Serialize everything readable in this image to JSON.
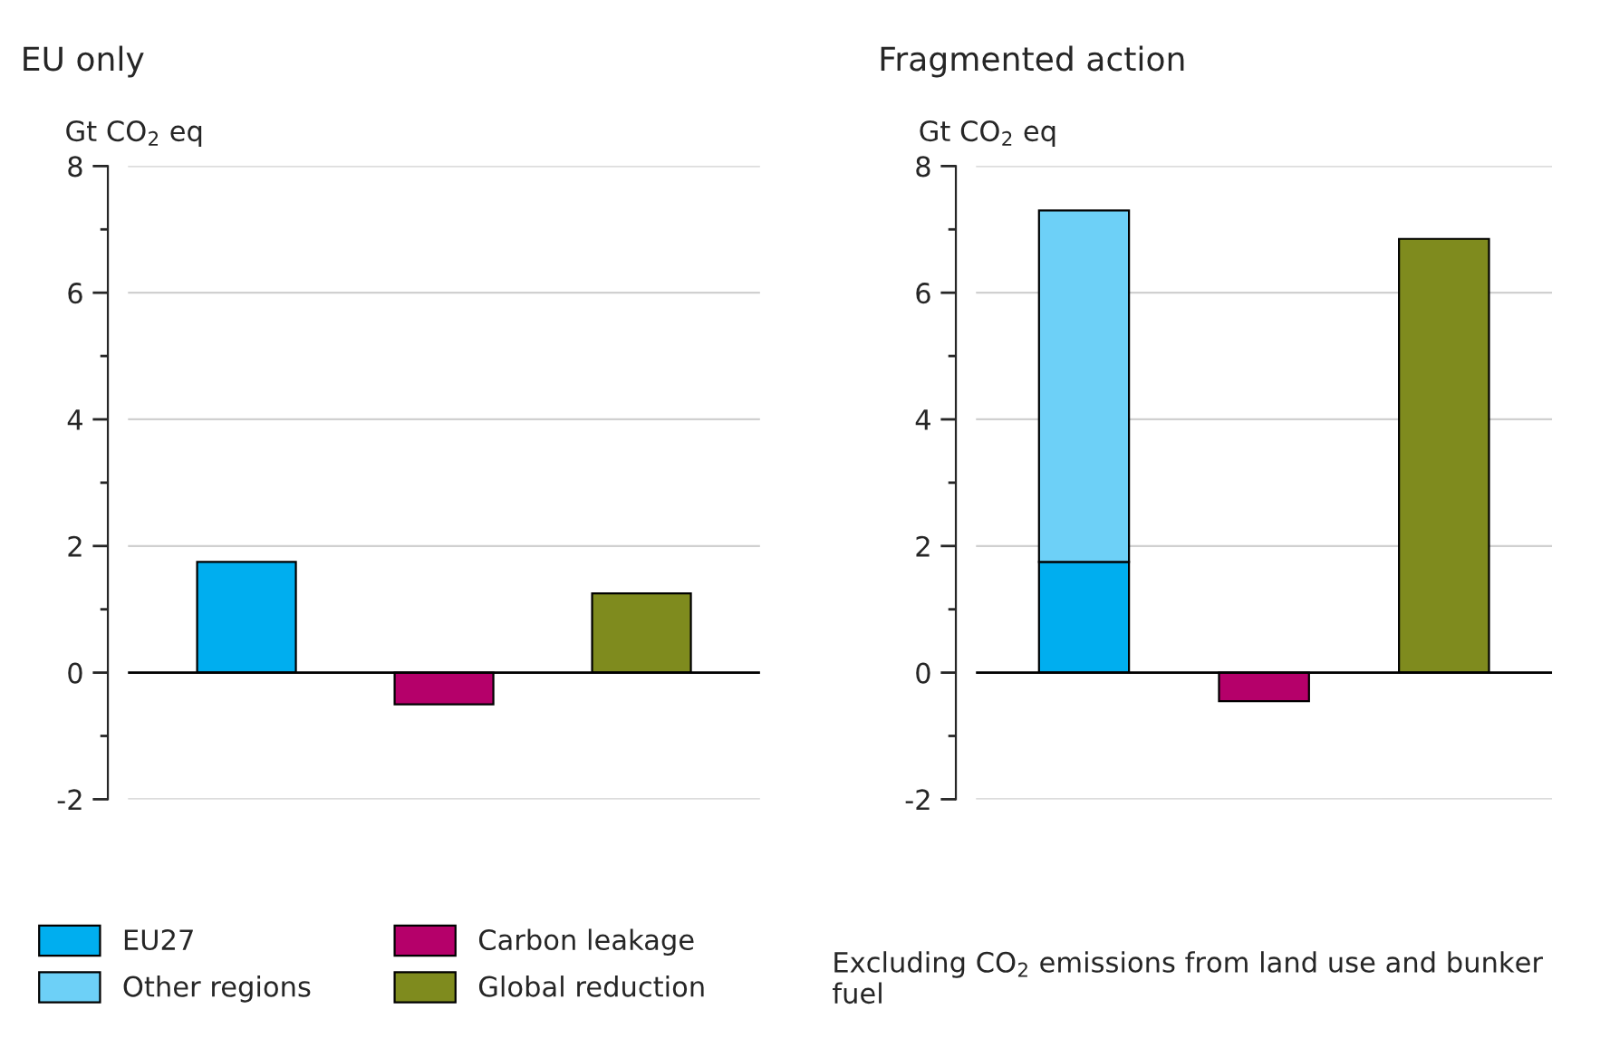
{
  "chart_data": [
    {
      "type": "bar",
      "title": "EU only",
      "ylabel": "Gt CO$_{2}$ eq",
      "categories": [
        null,
        null,
        null
      ],
      "stacked": true,
      "series": [
        {
          "name": "EU27",
          "color": "#00aeef",
          "values": [
            1.75,
            null,
            null
          ]
        },
        {
          "name": "Other regions",
          "color": "#6dd0f7",
          "values": [
            null,
            null,
            null
          ]
        },
        {
          "name": "Carbon leakage",
          "color": "#b5006a",
          "values": [
            null,
            -0.5,
            null
          ]
        },
        {
          "name": "Global reduction",
          "color": "#7f8b1e",
          "values": [
            null,
            null,
            1.25
          ]
        }
      ],
      "ylim": [
        -2,
        8
      ],
      "yticks": [
        -2,
        {
          "value": -1,
          "label": null
        },
        0,
        {
          "value": 1,
          "label": null
        },
        2,
        {
          "value": 3,
          "label": null
        },
        4,
        {
          "value": 5,
          "label": null
        },
        6,
        {
          "value": 7,
          "label": null
        },
        8
      ],
      "grid": "y",
      "legend": "bottom",
      "ref_lines": [
        {
          "axis": "y",
          "value": 0,
          "color": "#000000"
        }
      ]
    },
    {
      "type": "bar",
      "title": "Fragmented action",
      "ylabel": "Gt CO$_{2}$ eq",
      "categories": [
        null,
        null,
        null
      ],
      "stacked": true,
      "series": [
        {
          "color": "#00aeef",
          "values": [
            1.75,
            null,
            null
          ]
        },
        {
          "color": "#6dd0f7",
          "values": [
            5.55,
            null,
            null
          ]
        },
        {
          "color": "#b5006a",
          "values": [
            null,
            -0.45,
            null
          ]
        },
        {
          "color": "#7f8b1e",
          "values": [
            null,
            null,
            6.85
          ]
        }
      ],
      "ylim": [
        -2,
        8
      ],
      "yticks": [
        -2,
        {
          "value": -1,
          "label": null
        },
        0,
        {
          "value": 1,
          "label": null
        },
        2,
        {
          "value": 3,
          "label": null
        },
        4,
        {
          "value": 5,
          "label": null
        },
        6,
        {
          "value": 7,
          "label": null
        },
        8
      ],
      "grid": "y",
      "ref_lines": [
        {
          "axis": "y",
          "value": 0,
          "color": "#000000"
        }
      ],
      "annotations": [
        "Excluding CO$_{2}$ emissions from land use and bunker fuel"
      ]
    }
  ]
}
